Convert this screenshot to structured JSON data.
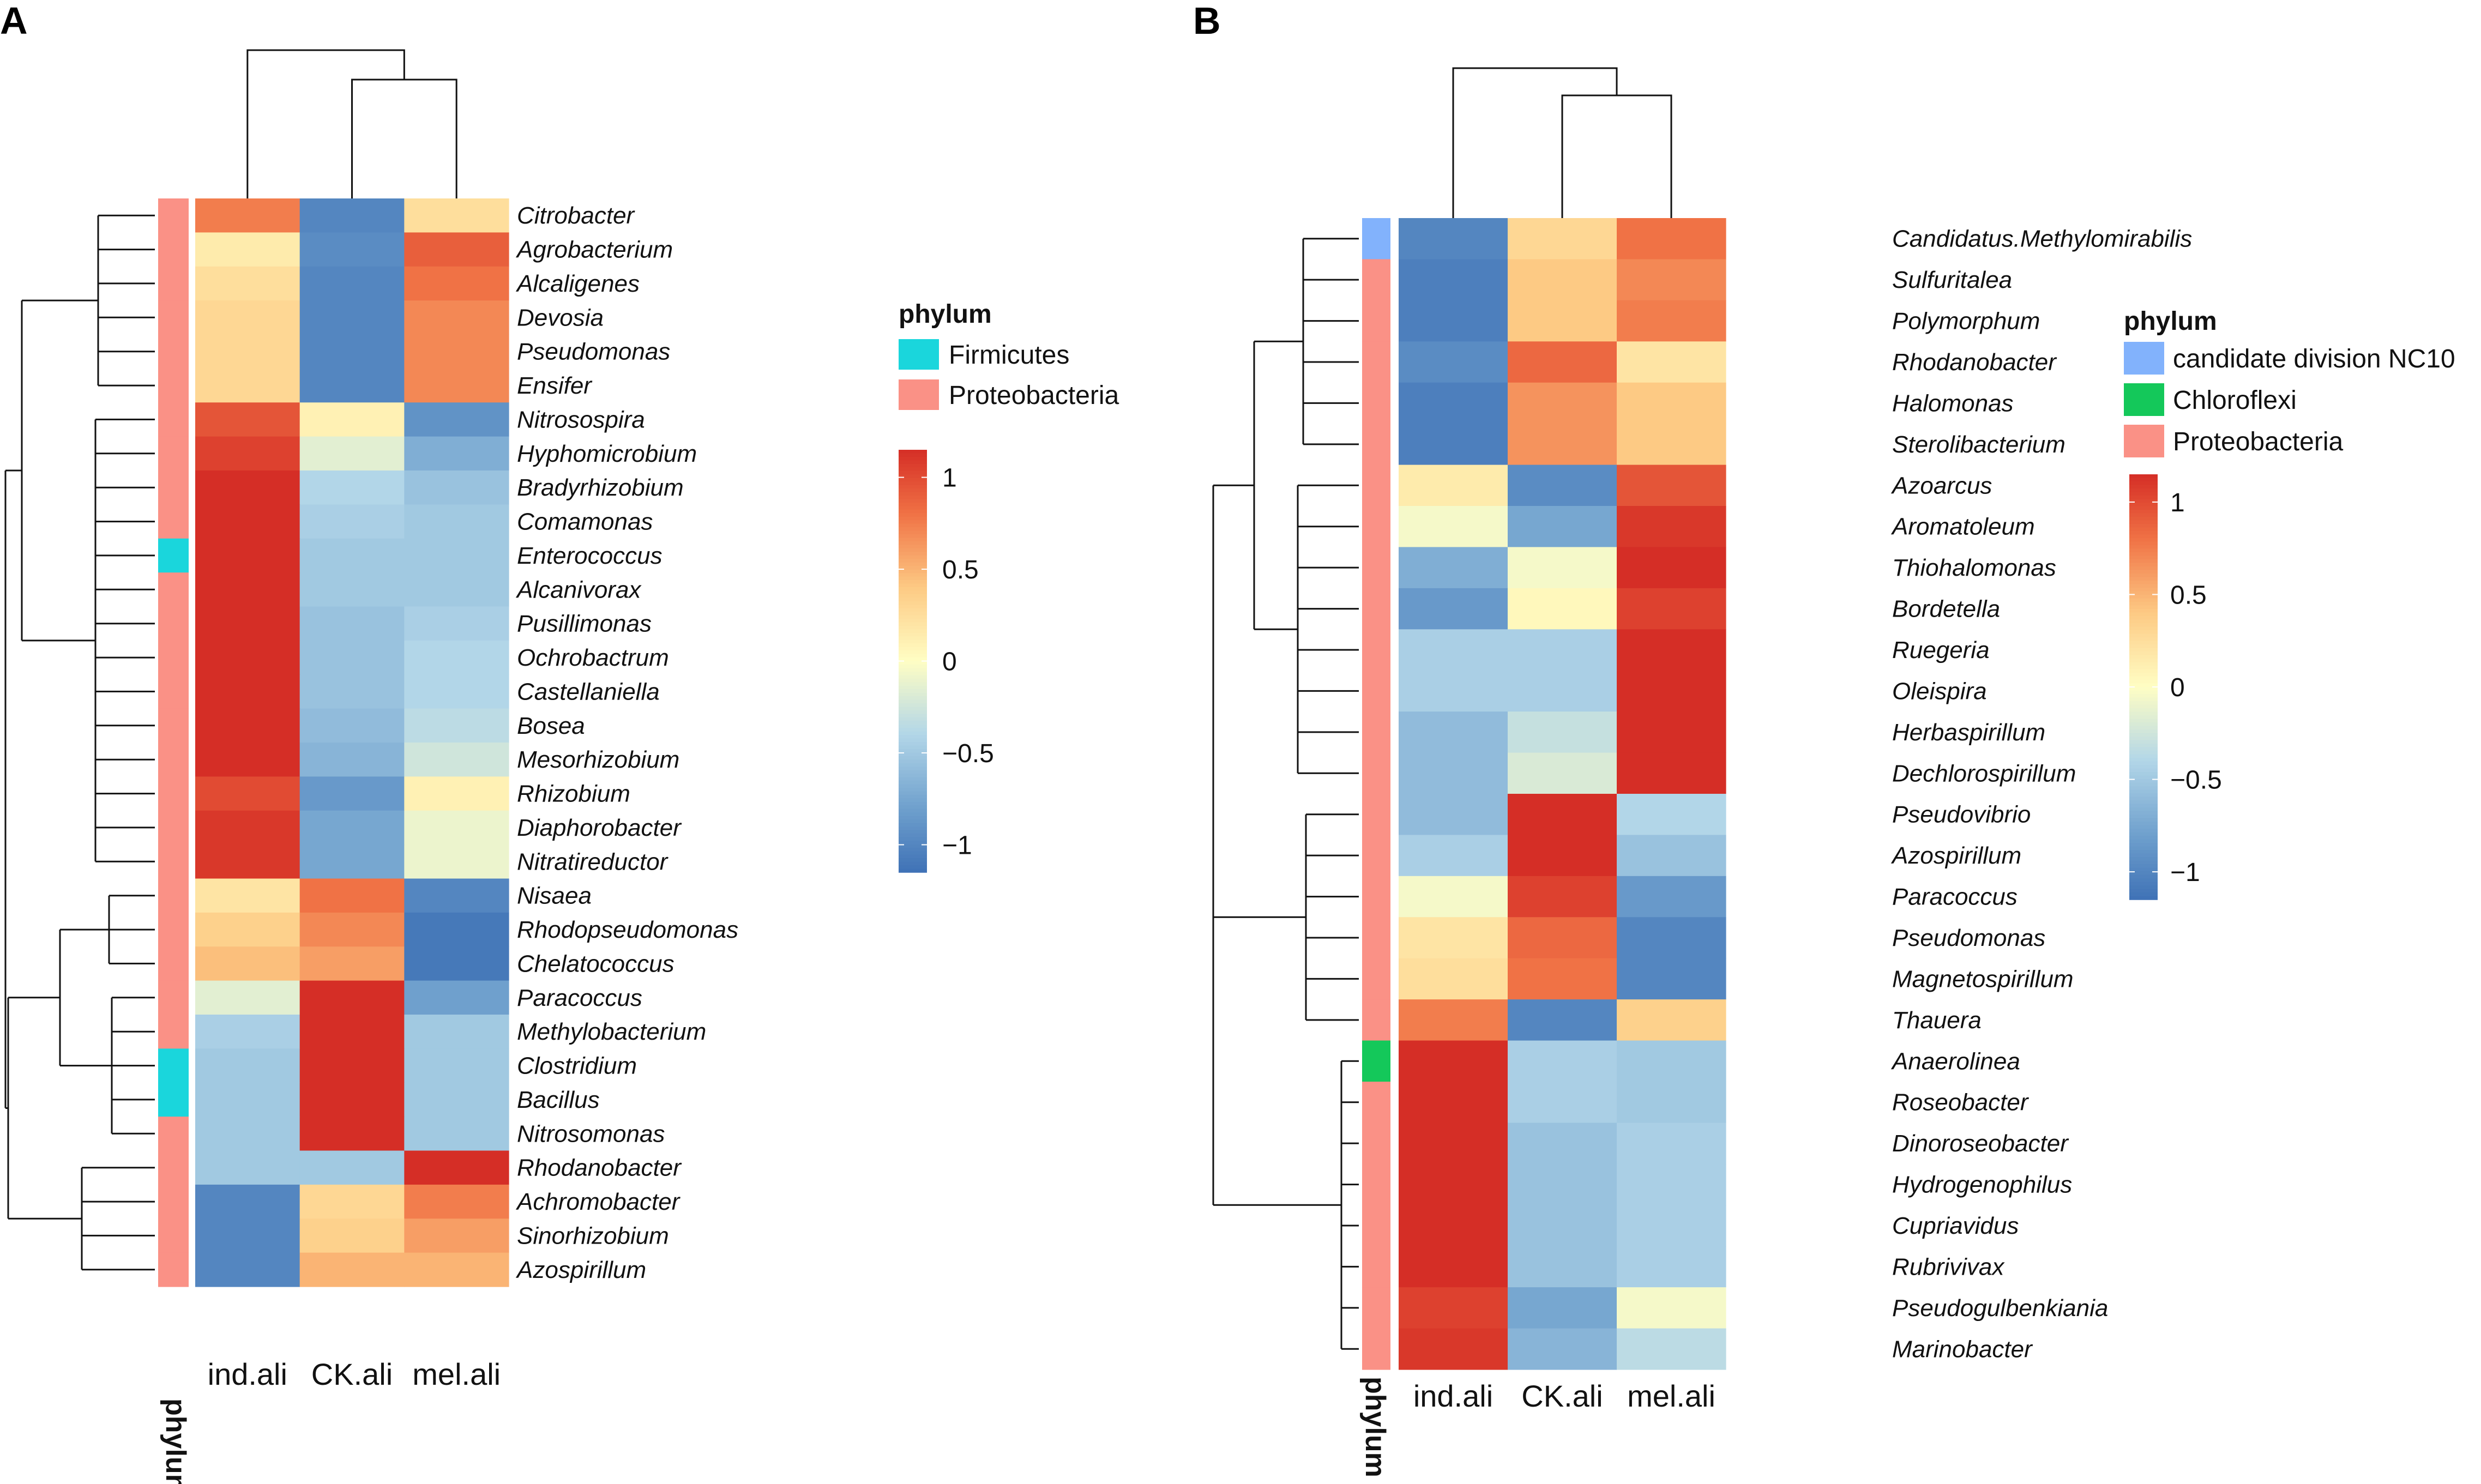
{
  "chart_data": [
    {
      "type": "heatmap",
      "panel_label": "A",
      "columns": [
        "ind.ali",
        "CK.ali",
        "mel.ali"
      ],
      "rows": [
        "Citrobacter",
        "Agrobacterium",
        "Alcaligenes",
        "Devosia",
        "Pseudomonas",
        "Ensifer",
        "Nitrosospira",
        "Hyphomicrobium",
        "Bradyrhizobium",
        "Comamonas",
        "Enterococcus",
        "Alcanivorax",
        "Pusillimonas",
        "Ochrobactrum",
        "Castellaniella",
        "Bosea",
        "Mesorhizobium",
        "Rhizobium",
        "Diaphorobacter",
        "Nitratireductor",
        "Nisaea",
        "Rhodopseudomonas",
        "Chelatococcus",
        "Paracoccus",
        "Methylobacterium",
        "Clostridium",
        "Bacillus",
        "Nitrosomonas",
        "Rhodanobacter",
        "Achromobacter",
        "Sinorhizobium",
        "Azospirillum"
      ],
      "row_phylum": [
        "Proteobacteria",
        "Proteobacteria",
        "Proteobacteria",
        "Proteobacteria",
        "Proteobacteria",
        "Proteobacteria",
        "Proteobacteria",
        "Proteobacteria",
        "Proteobacteria",
        "Proteobacteria",
        "Firmicutes",
        "Proteobacteria",
        "Proteobacteria",
        "Proteobacteria",
        "Proteobacteria",
        "Proteobacteria",
        "Proteobacteria",
        "Proteobacteria",
        "Proteobacteria",
        "Proteobacteria",
        "Proteobacteria",
        "Proteobacteria",
        "Proteobacteria",
        "Proteobacteria",
        "Proteobacteria",
        "Firmicutes",
        "Firmicutes",
        "Proteobacteria",
        "Proteobacteria",
        "Proteobacteria",
        "Proteobacteria",
        "Proteobacteria"
      ],
      "values": [
        [
          0.75,
          -1.0,
          0.25
        ],
        [
          0.15,
          -0.95,
          0.9
        ],
        [
          0.25,
          -1.0,
          0.8
        ],
        [
          0.3,
          -1.0,
          0.7
        ],
        [
          0.3,
          -1.0,
          0.7
        ],
        [
          0.3,
          -1.0,
          0.7
        ],
        [
          0.95,
          0.1,
          -0.9
        ],
        [
          1.05,
          -0.15,
          -0.7
        ],
        [
          1.15,
          -0.4,
          -0.55
        ],
        [
          1.15,
          -0.45,
          -0.5
        ],
        [
          1.15,
          -0.5,
          -0.5
        ],
        [
          1.15,
          -0.5,
          -0.5
        ],
        [
          1.15,
          -0.55,
          -0.45
        ],
        [
          1.15,
          -0.55,
          -0.4
        ],
        [
          1.15,
          -0.55,
          -0.4
        ],
        [
          1.15,
          -0.6,
          -0.35
        ],
        [
          1.15,
          -0.65,
          -0.25
        ],
        [
          1.0,
          -0.85,
          0.1
        ],
        [
          1.1,
          -0.75,
          -0.1
        ],
        [
          1.1,
          -0.75,
          -0.1
        ],
        [
          0.2,
          0.8,
          -1.0
        ],
        [
          0.35,
          0.7,
          -1.1
        ],
        [
          0.45,
          0.6,
          -1.1
        ],
        [
          -0.15,
          1.15,
          -0.8
        ],
        [
          -0.45,
          1.15,
          -0.5
        ],
        [
          -0.5,
          1.15,
          -0.5
        ],
        [
          -0.5,
          1.15,
          -0.5
        ],
        [
          -0.5,
          1.15,
          -0.5
        ],
        [
          -0.5,
          -0.5,
          1.15
        ],
        [
          -1.0,
          0.3,
          0.75
        ],
        [
          -1.0,
          0.35,
          0.6
        ],
        [
          -1.0,
          0.5,
          0.5
        ]
      ],
      "legend_title": "phylum",
      "legend_entries": [
        {
          "name": "Firmicutes",
          "color": "#1ad6dc"
        },
        {
          "name": "Proteobacteria",
          "color": "#fa9186"
        }
      ],
      "colorbar_ticks": [
        "1",
        "0.5",
        "0",
        "−0.5",
        "−1"
      ],
      "colorbar_tick_values": [
        1,
        0.5,
        0,
        -0.5,
        -1
      ],
      "color_range": [
        -1.15,
        1.15
      ],
      "annotation_axis_label": "phylum"
    },
    {
      "type": "heatmap",
      "panel_label": "B",
      "columns": [
        "ind.ali",
        "CK.ali",
        "mel.ali"
      ],
      "rows": [
        "Candidatus.Methylomirabilis",
        "Sulfuritalea",
        "Polymorphum",
        "Rhodanobacter",
        "Halomonas",
        "Sterolibacterium",
        "Azoarcus",
        "Aromatoleum",
        "Thiohalomonas",
        "Bordetella",
        "Ruegeria",
        "Oleispira",
        "Herbaspirillum",
        "Dechlorospirillum",
        "Pseudovibrio",
        "Azospirillum",
        "Paracoccus",
        "Pseudomonas",
        "Magnetospirillum",
        "Thauera",
        "Anaerolinea",
        "Roseobacter",
        "Dinoroseobacter",
        "Hydrogenophilus",
        "Cupriavidus",
        "Rubrivivax",
        "Pseudogulbenkiania",
        "Marinobacter"
      ],
      "row_phylum": [
        "candidate division NC10",
        "Proteobacteria",
        "Proteobacteria",
        "Proteobacteria",
        "Proteobacteria",
        "Proteobacteria",
        "Proteobacteria",
        "Proteobacteria",
        "Proteobacteria",
        "Proteobacteria",
        "Proteobacteria",
        "Proteobacteria",
        "Proteobacteria",
        "Proteobacteria",
        "Proteobacteria",
        "Proteobacteria",
        "Proteobacteria",
        "Proteobacteria",
        "Proteobacteria",
        "Proteobacteria",
        "Chloroflexi",
        "Proteobacteria",
        "Proteobacteria",
        "Proteobacteria",
        "Proteobacteria",
        "Proteobacteria",
        "Proteobacteria",
        "Proteobacteria"
      ],
      "values": [
        [
          -1.0,
          0.3,
          0.8
        ],
        [
          -1.05,
          0.4,
          0.7
        ],
        [
          -1.05,
          0.4,
          0.75
        ],
        [
          -0.95,
          0.85,
          0.2
        ],
        [
          -1.05,
          0.65,
          0.4
        ],
        [
          -1.05,
          0.65,
          0.4
        ],
        [
          0.15,
          -0.95,
          0.95
        ],
        [
          -0.05,
          -0.75,
          1.1
        ],
        [
          -0.7,
          -0.05,
          1.15
        ],
        [
          -0.85,
          0.05,
          1.05
        ],
        [
          -0.45,
          -0.45,
          1.15
        ],
        [
          -0.45,
          -0.45,
          1.15
        ],
        [
          -0.6,
          -0.3,
          1.15
        ],
        [
          -0.6,
          -0.2,
          1.15
        ],
        [
          -0.6,
          1.15,
          -0.4
        ],
        [
          -0.45,
          1.15,
          -0.55
        ],
        [
          -0.05,
          1.05,
          -0.85
        ],
        [
          0.2,
          0.85,
          -1.0
        ],
        [
          0.25,
          0.8,
          -1.0
        ],
        [
          0.75,
          -1.0,
          0.35
        ],
        [
          1.15,
          -0.45,
          -0.5
        ],
        [
          1.15,
          -0.45,
          -0.5
        ],
        [
          1.15,
          -0.55,
          -0.45
        ],
        [
          1.15,
          -0.55,
          -0.45
        ],
        [
          1.15,
          -0.55,
          -0.45
        ],
        [
          1.15,
          -0.55,
          -0.45
        ],
        [
          1.05,
          -0.75,
          -0.05
        ],
        [
          1.1,
          -0.65,
          -0.35
        ]
      ],
      "legend_title": "phylum",
      "legend_entries": [
        {
          "name": "candidate division NC10",
          "color": "#82b2fc"
        },
        {
          "name": "Chloroflexi",
          "color": "#14c85a"
        },
        {
          "name": "Proteobacteria",
          "color": "#fa9186"
        }
      ],
      "colorbar_ticks": [
        "1",
        "0.5",
        "0",
        "−0.5",
        "−1"
      ],
      "colorbar_tick_values": [
        1,
        0.5,
        0,
        -0.5,
        -1
      ],
      "color_range": [
        -1.15,
        1.15
      ],
      "annotation_axis_label": "phylum"
    }
  ]
}
